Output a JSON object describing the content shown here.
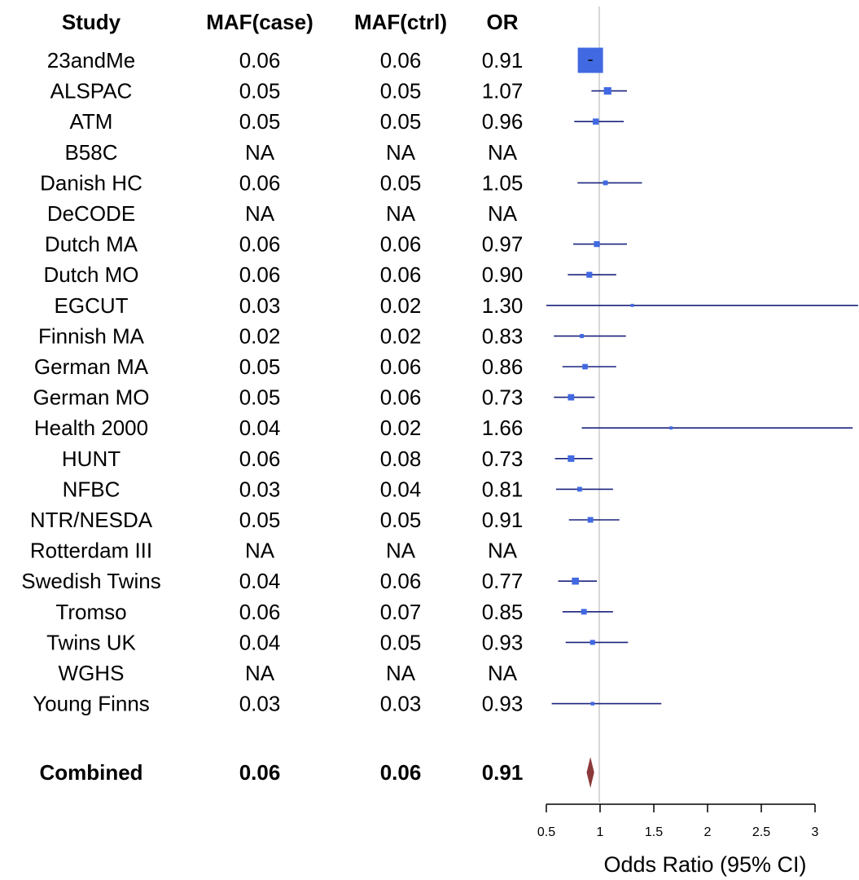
{
  "chart_data": {
    "type": "forest",
    "columns": [
      "Study",
      "MAF(case)",
      "MAF(ctrl)",
      "OR"
    ],
    "rows": [
      {
        "study": "23andMe",
        "maf_case": "0.06",
        "maf_ctrl": "0.06",
        "or": "0.91",
        "or_value": 0.91,
        "ci_low": 0.89,
        "ci_high": 0.93,
        "weight": 1.0
      },
      {
        "study": "ALSPAC",
        "maf_case": "0.05",
        "maf_ctrl": "0.05",
        "or": "1.07",
        "or_value": 1.07,
        "ci_low": 0.92,
        "ci_high": 1.25,
        "weight": 0.22
      },
      {
        "study": "ATM",
        "maf_case": "0.05",
        "maf_ctrl": "0.05",
        "or": "0.96",
        "or_value": 0.96,
        "ci_low": 0.76,
        "ci_high": 1.22,
        "weight": 0.16
      },
      {
        "study": "B58C",
        "maf_case": "NA",
        "maf_ctrl": "NA",
        "or": "NA",
        "or_value": null,
        "ci_low": null,
        "ci_high": null,
        "weight": 0
      },
      {
        "study": "Danish HC",
        "maf_case": "0.06",
        "maf_ctrl": "0.05",
        "or": "1.05",
        "or_value": 1.05,
        "ci_low": 0.79,
        "ci_high": 1.39,
        "weight": 0.1
      },
      {
        "study": "DeCODE",
        "maf_case": "NA",
        "maf_ctrl": "NA",
        "or": "NA",
        "or_value": null,
        "ci_low": null,
        "ci_high": null,
        "weight": 0
      },
      {
        "study": "Dutch MA",
        "maf_case": "0.06",
        "maf_ctrl": "0.06",
        "or": "0.97",
        "or_value": 0.97,
        "ci_low": 0.75,
        "ci_high": 1.25,
        "weight": 0.15
      },
      {
        "study": "Dutch MO",
        "maf_case": "0.06",
        "maf_ctrl": "0.06",
        "or": "0.90",
        "or_value": 0.9,
        "ci_low": 0.7,
        "ci_high": 1.15,
        "weight": 0.15
      },
      {
        "study": "EGCUT",
        "maf_case": "0.03",
        "maf_ctrl": "0.02",
        "or": "1.30",
        "or_value": 1.3,
        "ci_low": 0.5,
        "ci_high": 3.4,
        "weight": 0.03
      },
      {
        "study": "Finnish MA",
        "maf_case": "0.02",
        "maf_ctrl": "0.02",
        "or": "0.83",
        "or_value": 0.83,
        "ci_low": 0.57,
        "ci_high": 1.24,
        "weight": 0.07
      },
      {
        "study": "German MA",
        "maf_case": "0.05",
        "maf_ctrl": "0.06",
        "or": "0.86",
        "or_value": 0.86,
        "ci_low": 0.65,
        "ci_high": 1.15,
        "weight": 0.13
      },
      {
        "study": "German MO",
        "maf_case": "0.05",
        "maf_ctrl": "0.06",
        "or": "0.73",
        "or_value": 0.73,
        "ci_low": 0.57,
        "ci_high": 0.95,
        "weight": 0.17
      },
      {
        "study": "Health 2000",
        "maf_case": "0.04",
        "maf_ctrl": "0.02",
        "or": "1.66",
        "or_value": 1.66,
        "ci_low": 0.83,
        "ci_high": 3.35,
        "weight": 0.03
      },
      {
        "study": "HUNT",
        "maf_case": "0.06",
        "maf_ctrl": "0.08",
        "or": "0.73",
        "or_value": 0.73,
        "ci_low": 0.58,
        "ci_high": 0.93,
        "weight": 0.18
      },
      {
        "study": "NFBC",
        "maf_case": "0.03",
        "maf_ctrl": "0.04",
        "or": "0.81",
        "or_value": 0.81,
        "ci_low": 0.59,
        "ci_high": 1.12,
        "weight": 0.1
      },
      {
        "study": "NTR/NESDA",
        "maf_case": "0.05",
        "maf_ctrl": "0.05",
        "or": "0.91",
        "or_value": 0.91,
        "ci_low": 0.71,
        "ci_high": 1.18,
        "weight": 0.14
      },
      {
        "study": "Rotterdam III",
        "maf_case": "NA",
        "maf_ctrl": "NA",
        "or": "NA",
        "or_value": null,
        "ci_low": null,
        "ci_high": null,
        "weight": 0
      },
      {
        "study": "Swedish Twins",
        "maf_case": "0.04",
        "maf_ctrl": "0.06",
        "or": "0.77",
        "or_value": 0.77,
        "ci_low": 0.61,
        "ci_high": 0.97,
        "weight": 0.2
      },
      {
        "study": "Tromso",
        "maf_case": "0.06",
        "maf_ctrl": "0.07",
        "or": "0.85",
        "or_value": 0.85,
        "ci_low": 0.65,
        "ci_high": 1.12,
        "weight": 0.14
      },
      {
        "study": "Twins UK",
        "maf_case": "0.04",
        "maf_ctrl": "0.05",
        "or": "0.93",
        "or_value": 0.93,
        "ci_low": 0.68,
        "ci_high": 1.26,
        "weight": 0.11
      },
      {
        "study": "WGHS",
        "maf_case": "NA",
        "maf_ctrl": "NA",
        "or": "NA",
        "or_value": null,
        "ci_low": null,
        "ci_high": null,
        "weight": 0
      },
      {
        "study": "Young Finns",
        "maf_case": "0.03",
        "maf_ctrl": "0.03",
        "or": "0.93",
        "or_value": 0.93,
        "ci_low": 0.55,
        "ci_high": 1.57,
        "weight": 0.05
      }
    ],
    "combined": {
      "study": "Combined",
      "maf_case": "0.06",
      "maf_ctrl": "0.06",
      "or": "0.91",
      "or_value": 0.91,
      "ci_low": 0.89,
      "ci_high": 0.93
    },
    "x_axis": {
      "label": "Odds Ratio (95% CI)",
      "ticks": [
        0.5,
        1,
        1.5,
        2,
        2.5,
        3
      ],
      "tick_labels": [
        "0.5",
        "1",
        "1.5",
        "2",
        "2.5",
        "3"
      ],
      "range": [
        0.5,
        3.0
      ],
      "reference_line": 1
    },
    "colors": {
      "study_square": "#4169e1",
      "ci_line": "#1a237e",
      "combined_diamond": "#8b3a3a",
      "reference_line": "#cccccc",
      "axis": "#000000"
    },
    "grid": false
  }
}
